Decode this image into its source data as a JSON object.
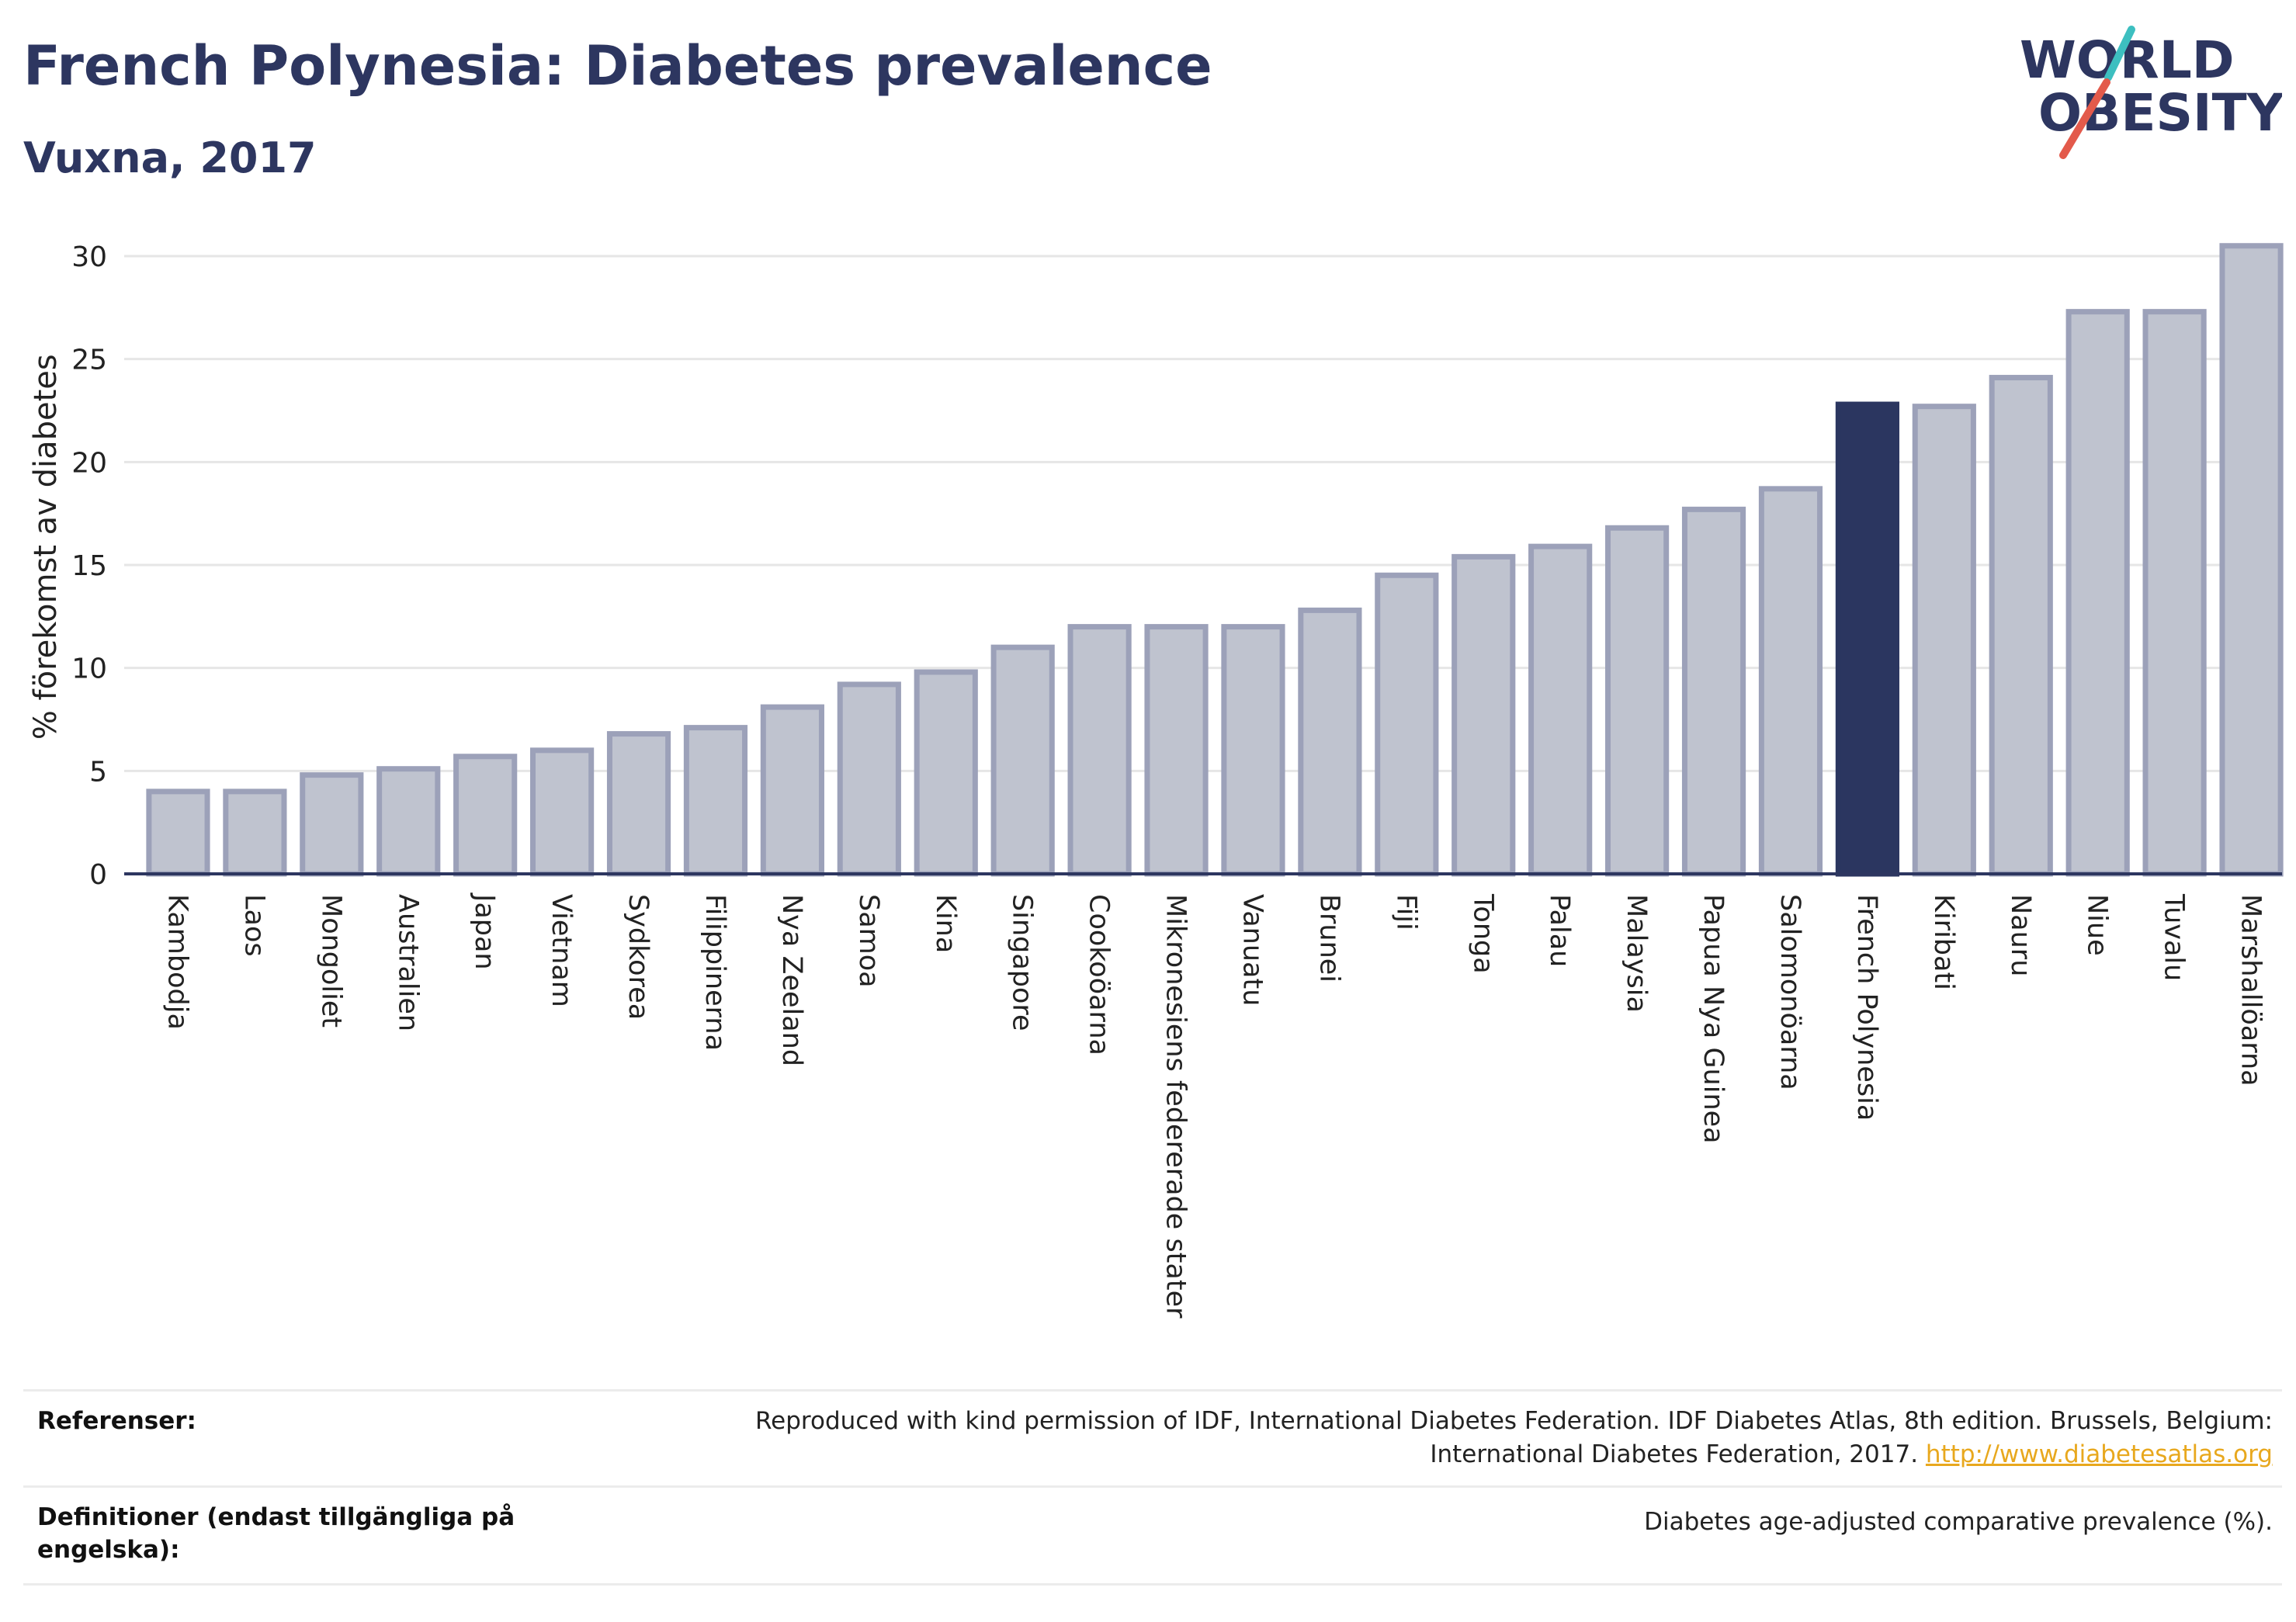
{
  "header": {
    "title": "French Polynesia: Diabetes prevalence",
    "subtitle": "Vuxna, 2017"
  },
  "logo": {
    "line1": "WORLD",
    "line2": "OBESITY",
    "colors": {
      "text": "#2d3660",
      "slash_red": "#e35a4b",
      "slash_teal": "#3dbfc0"
    }
  },
  "chart_data": {
    "type": "bar",
    "title": "French Polynesia: Diabetes prevalence",
    "subtitle": "Vuxna, 2017",
    "xlabel": "",
    "ylabel": "% förekomst av diabetes",
    "ylim": [
      0,
      31
    ],
    "yticks": [
      0,
      5,
      10,
      15,
      20,
      25,
      30
    ],
    "grid": true,
    "highlight": "French Polynesia",
    "colors": {
      "bar": "#bfc3cf",
      "bar_edge": "#9ca1b9",
      "highlight": "#2b3660"
    },
    "categories": [
      "Kambodja",
      "Laos",
      "Mongoliet",
      "Australien",
      "Japan",
      "Vietnam",
      "Sydkorea",
      "Filippinerna",
      "Nya Zeeland",
      "Samoa",
      "Kina",
      "Singapore",
      "Cookoöarna",
      "Mikronesiens federerade stater",
      "Vanuatu",
      "Brunei",
      "Fiji",
      "Tonga",
      "Palau",
      "Malaysia",
      "Papua Nya Guinea",
      "Salomonöarna",
      "French Polynesia",
      "Kiribati",
      "Nauru",
      "Niue",
      "Tuvalu",
      "Marshallöarna"
    ],
    "values": [
      4.0,
      4.0,
      4.8,
      5.1,
      5.7,
      6.0,
      6.8,
      7.1,
      8.1,
      9.2,
      9.8,
      11.0,
      12.0,
      12.0,
      12.0,
      12.8,
      14.5,
      15.4,
      15.9,
      16.8,
      17.7,
      18.7,
      22.8,
      22.7,
      24.1,
      27.3,
      27.3,
      30.5
    ]
  },
  "footer": {
    "references_label": "Referenser:",
    "references_text_1": "Reproduced with kind permission of IDF, International Diabetes Federation. IDF Diabetes Atlas, 8th edition. Brussels, Belgium:",
    "references_text_2": "International Diabetes Federation, 2017.",
    "references_link": "http://www.diabetesatlas.org",
    "definitions_label_1": "Definitioner (endast tillgängliga på",
    "definitions_label_2": "engelska):",
    "definitions_text": "Diabetes age-adjusted comparative prevalence (%)."
  }
}
